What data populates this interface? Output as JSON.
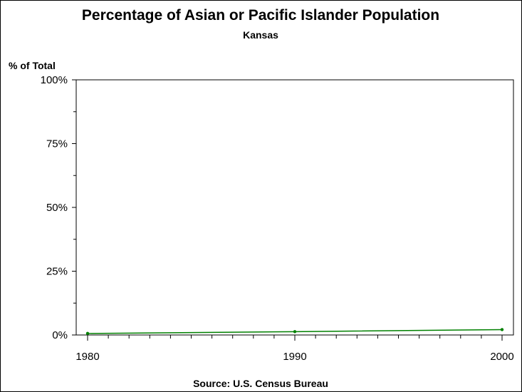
{
  "chart_data": {
    "type": "line",
    "title": "Percentage of Asian or Pacific Islander Population",
    "subtitle": "Kansas",
    "ylabel": "% of Total",
    "xlabel": "",
    "source": "Source: U.S. Census Bureau",
    "x": [
      1980,
      1990,
      2000
    ],
    "x_ticks": [
      "1980",
      "1990",
      "2000"
    ],
    "xlim": [
      1980,
      2000
    ],
    "y_ticks": [
      "0%",
      "25%",
      "50%",
      "75%",
      "100%"
    ],
    "ylim": [
      0,
      100
    ],
    "series": [
      {
        "values": [
          0.6,
          1.3,
          2.1
        ],
        "color": "#008000"
      }
    ],
    "grid": false,
    "legend": "none"
  }
}
